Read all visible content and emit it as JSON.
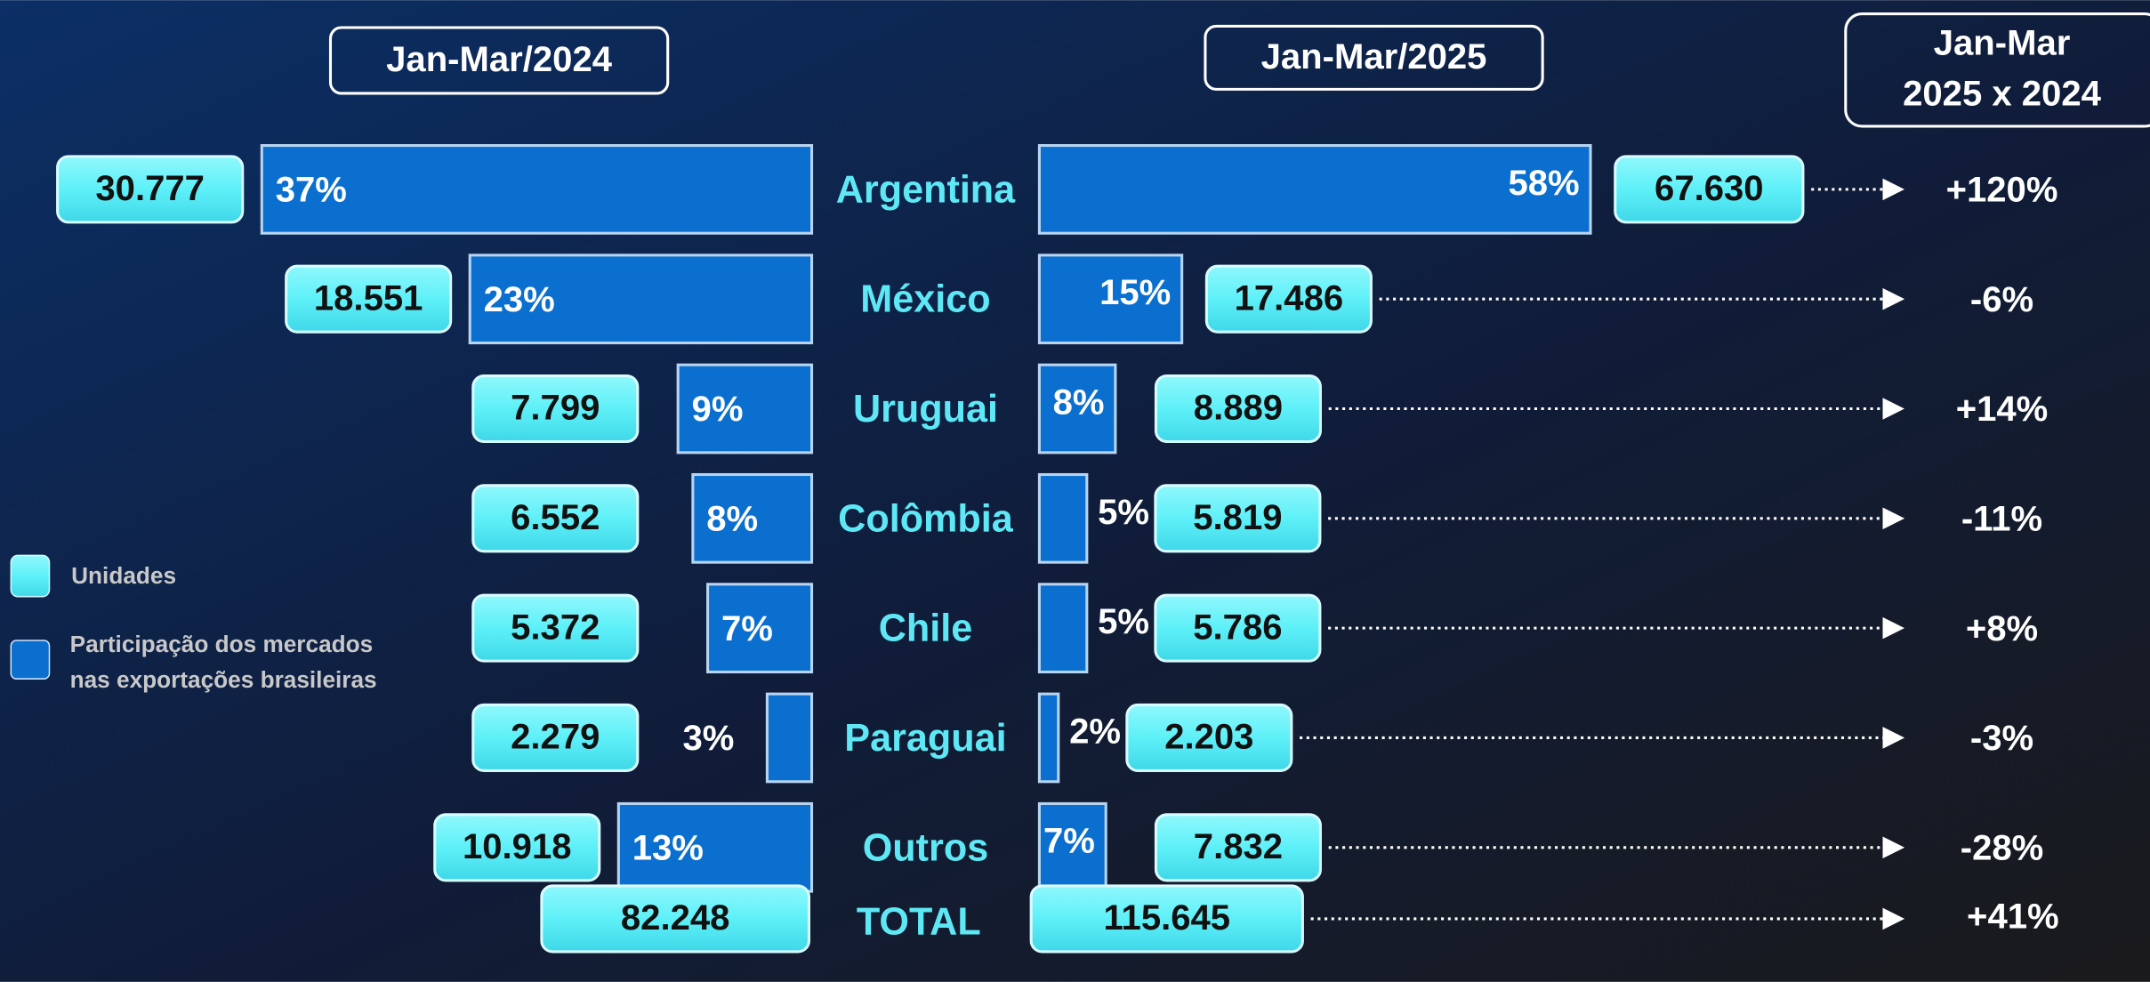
{
  "chart_data": {
    "type": "butterfly",
    "categories": [
      "Argentina",
      "México",
      "Uruguai",
      "Colômbia",
      "Chile",
      "Paraguai",
      "Outros"
    ],
    "series": [
      {
        "name": "Jan-Mar/2024",
        "color": "#0a6fce",
        "share": [
          37,
          23,
          9,
          8,
          7,
          3,
          13
        ],
        "share_labels": [
          "37%",
          "23%",
          "9%",
          "8%",
          "7%",
          "3%",
          "13%"
        ],
        "units": [
          30777,
          18551,
          7799,
          6552,
          5372,
          2279,
          10918
        ],
        "unit_labels": [
          "30.777",
          "18.551",
          "7.799",
          "6.552",
          "5.372",
          "2.279",
          "10.918"
        ]
      },
      {
        "name": "Jan-Mar/2025",
        "color": "#0a6fce",
        "share": [
          58,
          15,
          8,
          5,
          5,
          2,
          7
        ],
        "share_labels": [
          "58%",
          "15%",
          "8%",
          "5%",
          "5%",
          "2%",
          "7%"
        ],
        "units": [
          67630,
          17486,
          8889,
          5819,
          5786,
          2203,
          7832
        ],
        "unit_labels": [
          "67.630",
          "17.486",
          "8.889",
          "5.819",
          "5.786",
          "2.203",
          "7.832"
        ]
      }
    ],
    "change_header": [
      "Jan-Mar",
      "2025 x 2024"
    ],
    "change": [
      120,
      -6,
      14,
      -11,
      8,
      -3,
      -28
    ],
    "change_labels": [
      "+120%",
      "-6%",
      "+14%",
      "-11%",
      "+8%",
      "-3%",
      "-28%"
    ],
    "total": {
      "label": "TOTAL",
      "units": [
        82248,
        115645
      ],
      "unit_labels": [
        "82.248",
        "115.645"
      ],
      "change": 41,
      "change_label": "+41%"
    },
    "legend": {
      "units": "Unidades",
      "share": [
        "Participação dos mercados",
        "nas exportações brasileiras"
      ]
    },
    "unit_color": "#5ef0f8"
  }
}
